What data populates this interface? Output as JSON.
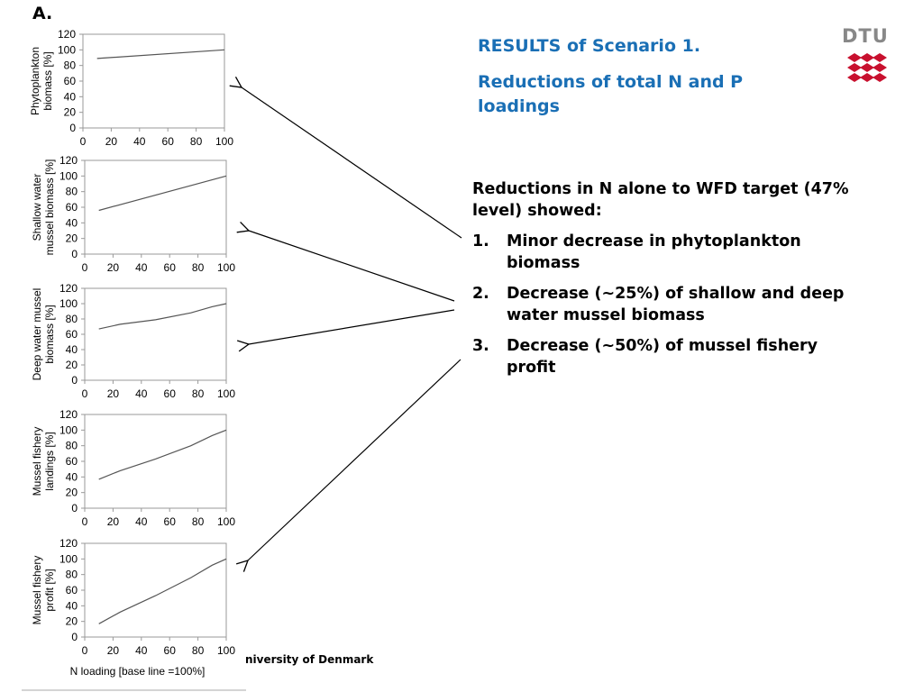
{
  "panel_label": "A.",
  "heading": {
    "line1": "RESULTS of Scenario 1.",
    "line2": "Reductions of total N and P loadings"
  },
  "logo": {
    "text": "DTU",
    "color": "#c8102e"
  },
  "bullets": {
    "intro": "Reductions in N alone to WFD target (47% level) showed:",
    "items": [
      {
        "num": "1.",
        "text": "Minor decrease in phytoplankton biomass"
      },
      {
        "num": "2.",
        "text": "Decrease (~25%) of shallow and deep water mussel biomass"
      },
      {
        "num": "3.",
        "text": "Decrease (~50%) of mussel fishery profit"
      }
    ]
  },
  "footer": "niversity of Denmark",
  "colors": {
    "heading": "#1a6fb5",
    "line": "#555555",
    "axis": "#999999"
  },
  "chart_data": [
    {
      "type": "line",
      "ylabel": "Phytoplankton biomass [%]",
      "xlabel": "",
      "xlim": [
        0,
        100
      ],
      "ylim": [
        0,
        120
      ],
      "xticks": [
        0,
        20,
        40,
        60,
        80,
        100
      ],
      "yticks": [
        0,
        20,
        40,
        60,
        80,
        100,
        120
      ],
      "x": [
        10,
        100
      ],
      "y": [
        89,
        100
      ]
    },
    {
      "type": "line",
      "ylabel": "Shallow water mussel biomass [%]",
      "xlabel": "",
      "xlim": [
        0,
        100
      ],
      "ylim": [
        0,
        120
      ],
      "xticks": [
        0,
        20,
        40,
        60,
        80,
        100
      ],
      "yticks": [
        0,
        20,
        40,
        60,
        80,
        100,
        120
      ],
      "x": [
        10,
        100
      ],
      "y": [
        56,
        100
      ]
    },
    {
      "type": "line",
      "ylabel": "Deep water mussel biomass [%]",
      "xlabel": "",
      "xlim": [
        0,
        100
      ],
      "ylim": [
        0,
        120
      ],
      "xticks": [
        0,
        20,
        40,
        60,
        80,
        100
      ],
      "yticks": [
        0,
        20,
        40,
        60,
        80,
        100,
        120
      ],
      "x": [
        10,
        25,
        50,
        75,
        90,
        100
      ],
      "y": [
        67,
        73,
        79,
        88,
        96,
        100
      ]
    },
    {
      "type": "line",
      "ylabel": "Mussel fishery landings [%]",
      "xlabel": "",
      "xlim": [
        0,
        100
      ],
      "ylim": [
        0,
        120
      ],
      "xticks": [
        0,
        20,
        40,
        60,
        80,
        100
      ],
      "yticks": [
        0,
        20,
        40,
        60,
        80,
        100,
        120
      ],
      "x": [
        10,
        25,
        50,
        75,
        90,
        100
      ],
      "y": [
        37,
        48,
        63,
        80,
        93,
        100
      ]
    },
    {
      "type": "line",
      "ylabel": "Mussel fishery profit [%]",
      "xlabel": "N loading [base line =100%]",
      "xlim": [
        0,
        100
      ],
      "ylim": [
        0,
        120
      ],
      "xticks": [
        0,
        20,
        40,
        60,
        80,
        100
      ],
      "yticks": [
        0,
        20,
        40,
        60,
        80,
        100,
        120
      ],
      "x": [
        10,
        25,
        50,
        75,
        90,
        100
      ],
      "y": [
        17,
        32,
        53,
        76,
        92,
        100
      ]
    }
  ]
}
